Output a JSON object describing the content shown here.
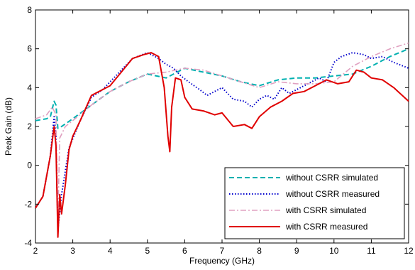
{
  "chart_data": {
    "type": "line",
    "title": "",
    "xlabel": "Frequency (GHz)",
    "ylabel": "Peak Gain (dB)",
    "xlim": [
      2,
      12
    ],
    "ylim": [
      -4,
      8
    ],
    "xticks": [
      2,
      3,
      4,
      5,
      6,
      7,
      8,
      9,
      10,
      11,
      12
    ],
    "yticks": [
      -4,
      -2,
      0,
      2,
      4,
      6,
      8
    ],
    "grid": false,
    "legend_position": "bottom-right",
    "series": [
      {
        "name": "without CSRR simulated",
        "color": "#00b0b0",
        "dash": "dashed",
        "x": [
          2.0,
          2.3,
          2.4,
          2.5,
          2.55,
          2.6,
          2.7,
          3.0,
          3.5,
          4.0,
          4.5,
          5.0,
          5.5,
          6.0,
          6.5,
          7.0,
          7.5,
          8.0,
          8.5,
          9.0,
          9.5,
          10.0,
          10.5,
          11.0,
          11.5,
          12.0
        ],
        "y": [
          2.3,
          2.4,
          2.5,
          3.3,
          3.1,
          1.9,
          2.0,
          2.4,
          3.1,
          3.8,
          4.3,
          4.7,
          4.5,
          5.0,
          4.8,
          4.6,
          4.3,
          4.1,
          4.4,
          4.5,
          4.5,
          4.6,
          4.7,
          5.1,
          5.6,
          6.0
        ]
      },
      {
        "name": "without CSRR measured",
        "color": "#0000cc",
        "dash": "dotted",
        "x": [
          2.0,
          2.2,
          2.4,
          2.5,
          2.55,
          2.6,
          2.7,
          2.9,
          3.2,
          3.5,
          3.8,
          4.2,
          4.6,
          5.0,
          5.3,
          5.5,
          5.7,
          5.9,
          6.1,
          6.4,
          6.6,
          6.8,
          7.0,
          7.3,
          7.6,
          7.8,
          8.0,
          8.2,
          8.4,
          8.6,
          8.8,
          9.0,
          9.3,
          9.6,
          9.8,
          10.0,
          10.2,
          10.5,
          10.8,
          11.0,
          11.3,
          11.6,
          12.0
        ],
        "y": [
          -2.2,
          -1.6,
          0.5,
          2.5,
          1.5,
          -3.3,
          -1.5,
          0.9,
          2.3,
          3.5,
          3.9,
          4.7,
          5.5,
          5.8,
          5.5,
          5.2,
          5.0,
          4.6,
          4.3,
          3.9,
          3.6,
          3.8,
          4.0,
          3.4,
          3.3,
          3.0,
          3.4,
          3.6,
          3.4,
          4.0,
          3.7,
          3.9,
          4.2,
          4.5,
          4.3,
          5.3,
          5.6,
          5.8,
          5.7,
          5.5,
          5.6,
          5.3,
          5.0
        ]
      },
      {
        "name": "with CSRR simulated",
        "color": "#e0a0c0",
        "dash": "dashdot",
        "x": [
          2.0,
          2.3,
          2.45,
          2.55,
          2.6,
          2.65,
          2.8,
          3.0,
          3.5,
          4.0,
          4.5,
          5.0,
          5.5,
          6.0,
          6.5,
          7.0,
          7.5,
          8.0,
          8.5,
          9.0,
          9.5,
          10.0,
          10.5,
          11.0,
          11.5,
          12.0
        ],
        "y": [
          2.4,
          2.6,
          3.0,
          2.6,
          -2.8,
          1.4,
          2.0,
          2.3,
          3.1,
          3.8,
          4.3,
          4.7,
          4.8,
          5.0,
          4.9,
          4.6,
          4.3,
          4.0,
          4.3,
          4.2,
          4.2,
          4.3,
          5.1,
          5.6,
          6.0,
          6.3
        ]
      },
      {
        "name": "with CSRR measured",
        "color": "#e00000",
        "dash": "solid",
        "x": [
          2.0,
          2.2,
          2.4,
          2.5,
          2.55,
          2.6,
          2.65,
          2.7,
          2.8,
          2.9,
          3.0,
          3.2,
          3.5,
          3.8,
          4.0,
          4.3,
          4.6,
          4.9,
          5.1,
          5.3,
          5.45,
          5.55,
          5.6,
          5.65,
          5.75,
          5.9,
          6.0,
          6.2,
          6.5,
          6.8,
          7.0,
          7.3,
          7.6,
          7.8,
          8.0,
          8.3,
          8.6,
          8.9,
          9.2,
          9.5,
          9.8,
          10.1,
          10.4,
          10.6,
          10.8,
          11.0,
          11.3,
          11.6,
          12.0
        ],
        "y": [
          -2.2,
          -1.6,
          0.5,
          2.0,
          1.0,
          -3.7,
          -1.5,
          -2.5,
          -1.0,
          0.8,
          1.5,
          2.3,
          3.6,
          3.9,
          4.1,
          4.8,
          5.5,
          5.7,
          5.8,
          5.6,
          4.0,
          1.5,
          0.7,
          3.0,
          4.5,
          4.4,
          3.5,
          2.9,
          2.8,
          2.6,
          2.7,
          2.0,
          2.1,
          1.9,
          2.5,
          3.0,
          3.3,
          3.7,
          3.8,
          4.1,
          4.4,
          4.2,
          4.3,
          4.9,
          4.8,
          4.5,
          4.4,
          4.0,
          3.3
        ]
      }
    ]
  }
}
